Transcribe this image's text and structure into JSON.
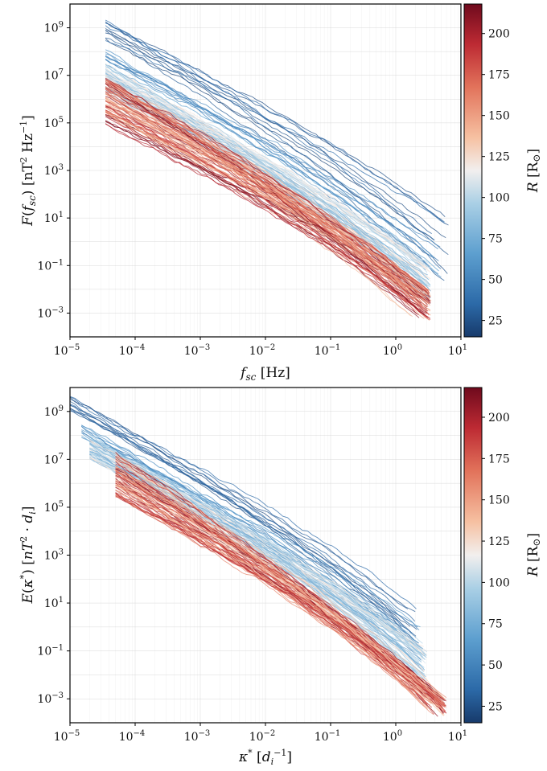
{
  "colors": {
    "colormap": "RdBu_r",
    "low": "#1f4e8c",
    "mid": "#f2efee",
    "high": "#8a0b1e"
  },
  "chart_data": [
    {
      "type": "line",
      "panel": "top",
      "title": "",
      "xlabel": "f_sc [Hz]",
      "ylabel": "F(f_sc) [nT^2 Hz^-1]",
      "xscale": "log",
      "yscale": "log",
      "xlim": [
        1e-05,
        10
      ],
      "ylim": [
        0.0001,
        10000000000
      ],
      "x_ticks": [
        "10^-5",
        "10^-4",
        "10^-3",
        "10^-2",
        "10^-1",
        "10^0",
        "10^1"
      ],
      "y_ticks": [
        "10^-3",
        "10^-1",
        "10^1",
        "10^3",
        "10^5",
        "10^7",
        "10^9"
      ],
      "grid": true,
      "colorbar": {
        "label": "R [R_sun]",
        "range": [
          15,
          218
        ],
        "ticks": [
          "25",
          "50",
          "75",
          "100",
          "125",
          "150",
          "175",
          "200"
        ]
      },
      "series_groups": [
        {
          "R_range": [
            20,
            40
          ],
          "count": 12,
          "x_start": 3.5e-05,
          "x_end": 6.5,
          "y_at_start": [
            300000000.0,
            2000000000.0
          ],
          "y_at_end": [
            0.02,
            30
          ]
        },
        {
          "R_range": [
            40,
            70
          ],
          "count": 10,
          "x_start": 3.5e-05,
          "x_end": 5.0,
          "y_at_start": [
            30000000.0,
            150000000.0
          ],
          "y_at_end": [
            0.02,
            0.6
          ]
        },
        {
          "R_range": [
            70,
            130
          ],
          "count": 55,
          "x_start": 3.5e-05,
          "x_end": 3.5,
          "y_at_start": [
            1500000.0,
            30000000.0
          ],
          "y_at_end": [
            0.003,
            0.1
          ]
        },
        {
          "R_range": [
            130,
            218
          ],
          "count": 75,
          "x_start": 3.5e-05,
          "x_end": 3.5,
          "y_at_start": [
            80000.0,
            8000000.0
          ],
          "y_at_end": [
            0.0005,
            0.01
          ]
        }
      ]
    },
    {
      "type": "line",
      "panel": "bottom",
      "title": "",
      "xlabel": "κ* [d_i^-1]",
      "ylabel": "E(κ*) [nT^2·d_i]",
      "xscale": "log",
      "yscale": "log",
      "xlim": [
        1e-05,
        10
      ],
      "ylim": [
        0.0001,
        10000000000
      ],
      "x_ticks": [
        "10^-5",
        "10^-4",
        "10^-3",
        "10^-2",
        "10^-1",
        "10^0",
        "10^1"
      ],
      "y_ticks": [
        "10^-3",
        "10^-1",
        "10^1",
        "10^3",
        "10^5",
        "10^7",
        "10^9"
      ],
      "grid": true,
      "colorbar": {
        "label": "R [R_sun]",
        "range": [
          15,
          218
        ],
        "ticks": [
          "25",
          "50",
          "75",
          "100",
          "125",
          "150",
          "175",
          "200"
        ]
      },
      "series_groups": [
        {
          "R_range": [
            20,
            40
          ],
          "count": 12,
          "x_start": 1e-05,
          "x_end": 2.2,
          "y_at_start": [
            1000000000.0,
            4000000000.0
          ],
          "y_at_end": [
            0.3,
            10
          ]
        },
        {
          "R_range": [
            40,
            70
          ],
          "count": 10,
          "x_start": 1.5e-05,
          "x_end": 2.5,
          "y_at_start": [
            80000000.0,
            400000000.0
          ],
          "y_at_end": [
            0.02,
            1
          ]
        },
        {
          "R_range": [
            70,
            130
          ],
          "count": 55,
          "x_start": 2e-05,
          "x_end": 3.0,
          "y_at_start": [
            10000000.0,
            100000000.0
          ],
          "y_at_end": [
            0.005,
            0.2
          ]
        },
        {
          "R_range": [
            130,
            218
          ],
          "count": 75,
          "x_start": 5e-05,
          "x_end": 6.0,
          "y_at_start": [
            300000.0,
            20000000.0
          ],
          "y_at_end": [
            0.0002,
            0.0012
          ]
        }
      ]
    }
  ]
}
